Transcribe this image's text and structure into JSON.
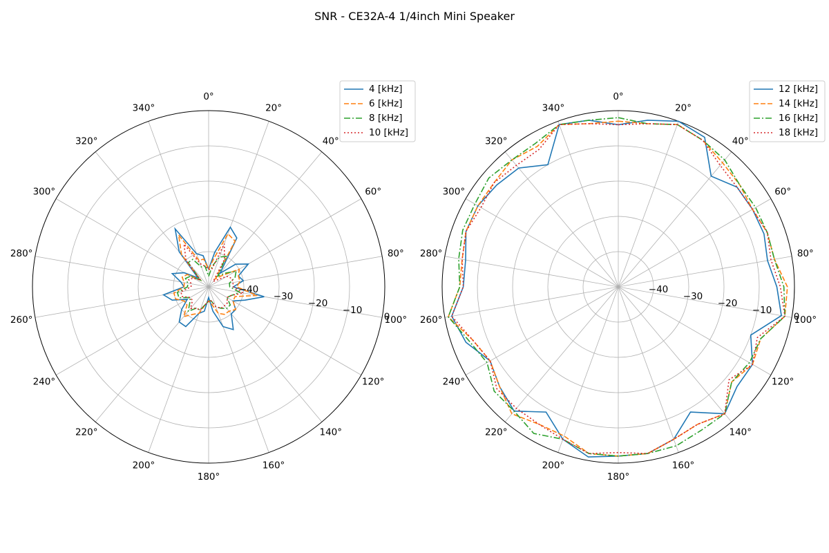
{
  "title": "SNR - CE32A-4 1/4inch Mini Speaker",
  "colors": {
    "blue": "#1f77b4",
    "orange": "#ff7f0e",
    "green": "#2ca02c",
    "red": "#d62728",
    "grid": "#b0b0b0"
  },
  "chart_data": [
    {
      "type": "polar-line",
      "rlim": [
        -50,
        0
      ],
      "rticks": [
        -40,
        -30,
        -20,
        -10,
        0
      ],
      "rtick_labels": [
        "−40",
        "−30",
        "−20",
        "−10",
        "0"
      ],
      "theta_ticks": [
        0,
        20,
        40,
        60,
        80,
        100,
        120,
        140,
        160,
        180,
        200,
        220,
        240,
        260,
        280,
        300,
        320,
        340
      ],
      "theta_tick_labels": [
        "0°",
        "20°",
        "40°",
        "60°",
        "80°",
        "100°",
        "120°",
        "140°",
        "160°",
        "180°",
        "200°",
        "220°",
        "240°",
        "260°",
        "280°",
        "300°",
        "320°",
        "340°"
      ],
      "theta_direction": "clockwise",
      "theta_zero": "top",
      "legend_loc": "top-right",
      "angles": [
        0,
        10,
        20,
        30,
        40,
        50,
        60,
        70,
        80,
        90,
        100,
        110,
        120,
        130,
        140,
        150,
        160,
        170,
        180,
        190,
        200,
        210,
        220,
        230,
        240,
        250,
        260,
        270,
        280,
        290,
        300,
        310,
        320,
        330,
        340,
        350
      ],
      "series": [
        {
          "name": "4 [kHz]",
          "style": "solid",
          "color": "#1f77b4",
          "values": [
            -45,
            -40,
            -32,
            -34,
            -45,
            -40,
            -37,
            -41,
            -40,
            -43,
            -34,
            -39,
            -42,
            -40,
            -40,
            -36,
            -38,
            -43,
            -47,
            -43,
            -42,
            -37,
            -37,
            -40,
            -43,
            -39,
            -37,
            -43,
            -42,
            -39,
            -42,
            -46,
            -37,
            -31,
            -40,
            -41
          ]
        },
        {
          "name": "6 [kHz]",
          "style": "dashed",
          "color": "#ff7f0e",
          "values": [
            -45,
            -42,
            -34,
            -35,
            -47,
            -45,
            -40,
            -41,
            -41,
            -42,
            -36,
            -42,
            -42,
            -40,
            -41,
            -41,
            -42,
            -45,
            -46,
            -45,
            -42,
            -41,
            -39,
            -42,
            -42,
            -40,
            -40,
            -43,
            -43,
            -42,
            -43,
            -47,
            -38,
            -33,
            -42,
            -42
          ]
        },
        {
          "name": "8 [kHz]",
          "style": "dashdot",
          "color": "#2ca02c",
          "values": [
            -47,
            -44,
            -41,
            -40,
            -46,
            -44,
            -41,
            -42,
            -44,
            -44,
            -41,
            -43,
            -44,
            -42,
            -42,
            -43,
            -44,
            -46,
            -46,
            -45,
            -43,
            -43,
            -41,
            -43,
            -44,
            -41,
            -41,
            -44,
            -44,
            -43,
            -44,
            -47,
            -41,
            -41,
            -44,
            -44
          ]
        },
        {
          "name": "10 [kHz]",
          "style": "dotted",
          "color": "#d62728",
          "values": [
            -45,
            -45,
            -37,
            -41,
            -48,
            -47,
            -44,
            -43,
            -43,
            -43,
            -40,
            -43,
            -44,
            -43,
            -43,
            -43,
            -44,
            -46,
            -46,
            -45,
            -43,
            -43,
            -42,
            -44,
            -44,
            -42,
            -42,
            -45,
            -45,
            -44,
            -45,
            -47,
            -40,
            -36,
            -43,
            -44
          ]
        }
      ]
    },
    {
      "type": "polar-line",
      "rlim": [
        -50,
        0
      ],
      "rticks": [
        -40,
        -30,
        -20,
        -10,
        0
      ],
      "rtick_labels": [
        "−40",
        "−30",
        "−20",
        "−10",
        "0"
      ],
      "theta_ticks": [
        0,
        20,
        40,
        60,
        80,
        100,
        120,
        140,
        160,
        180,
        200,
        220,
        240,
        260,
        280,
        300,
        320,
        340
      ],
      "theta_tick_labels": [
        "0°",
        "20°",
        "40°",
        "60°",
        "80°",
        "100°",
        "120°",
        "140°",
        "160°",
        "180°",
        "200°",
        "220°",
        "240°",
        "260°",
        "280°",
        "300°",
        "320°",
        "340°"
      ],
      "theta_direction": "clockwise",
      "theta_zero": "top",
      "legend_loc": "top-right",
      "angles": [
        0,
        10,
        20,
        30,
        40,
        50,
        60,
        70,
        80,
        90,
        100,
        110,
        120,
        130,
        140,
        150,
        160,
        170,
        180,
        190,
        200,
        210,
        220,
        230,
        240,
        250,
        260,
        270,
        280,
        290,
        300,
        310,
        320,
        330,
        340,
        350
      ],
      "series": [
        {
          "name": "12 [kHz]",
          "style": "solid",
          "color": "#1f77b4",
          "values": [
            -4,
            -2,
            0,
            -1,
            -9,
            -6,
            -6,
            -6,
            -7,
            -5,
            -3,
            -10,
            -6,
            -6,
            -3,
            -9,
            -4,
            -2,
            -2,
            -1,
            -4,
            -9,
            -4,
            -6,
            -8,
            -4,
            -2,
            -6,
            -6,
            -4,
            -4,
            -5,
            -6,
            -10,
            -1,
            -2
          ]
        },
        {
          "name": "14 [kHz]",
          "style": "dashed",
          "color": "#ff7f0e",
          "values": [
            -3,
            -3,
            -1,
            -2,
            -4,
            -5,
            -6,
            -5,
            -5,
            -2,
            -2,
            -7,
            -6,
            -8,
            -3,
            -5,
            -4,
            -2,
            -2,
            -2,
            -5,
            -5,
            -3,
            -6,
            -8,
            -6,
            -1,
            -5,
            -5,
            -4,
            -4,
            -4,
            -3,
            -4,
            -1,
            -3
          ]
        },
        {
          "name": "16 [kHz]",
          "style": "dashdot",
          "color": "#2ca02c",
          "values": [
            -2,
            -3,
            -1,
            -2,
            -3,
            -5,
            -5,
            -5,
            -5,
            -3,
            -2,
            -7,
            -7,
            -8,
            -3,
            -3,
            -2,
            -2,
            -2,
            -2,
            -4,
            -2,
            -4,
            -4,
            -7,
            -5,
            -1,
            -5,
            -4,
            -3,
            -3,
            -2,
            -3,
            -3,
            -1,
            -2
          ]
        },
        {
          "name": "18 [kHz]",
          "style": "dotted",
          "color": "#d62728",
          "values": [
            -4,
            -3,
            -1,
            -2,
            -5,
            -6,
            -6,
            -5,
            -6,
            -4,
            -2,
            -8,
            -6,
            -9,
            -3,
            -5,
            -4,
            -2,
            -3,
            -2,
            -4,
            -5,
            -5,
            -5,
            -8,
            -6,
            -2,
            -6,
            -5,
            -4,
            -5,
            -4,
            -5,
            -5,
            -1,
            -3
          ]
        }
      ]
    }
  ]
}
